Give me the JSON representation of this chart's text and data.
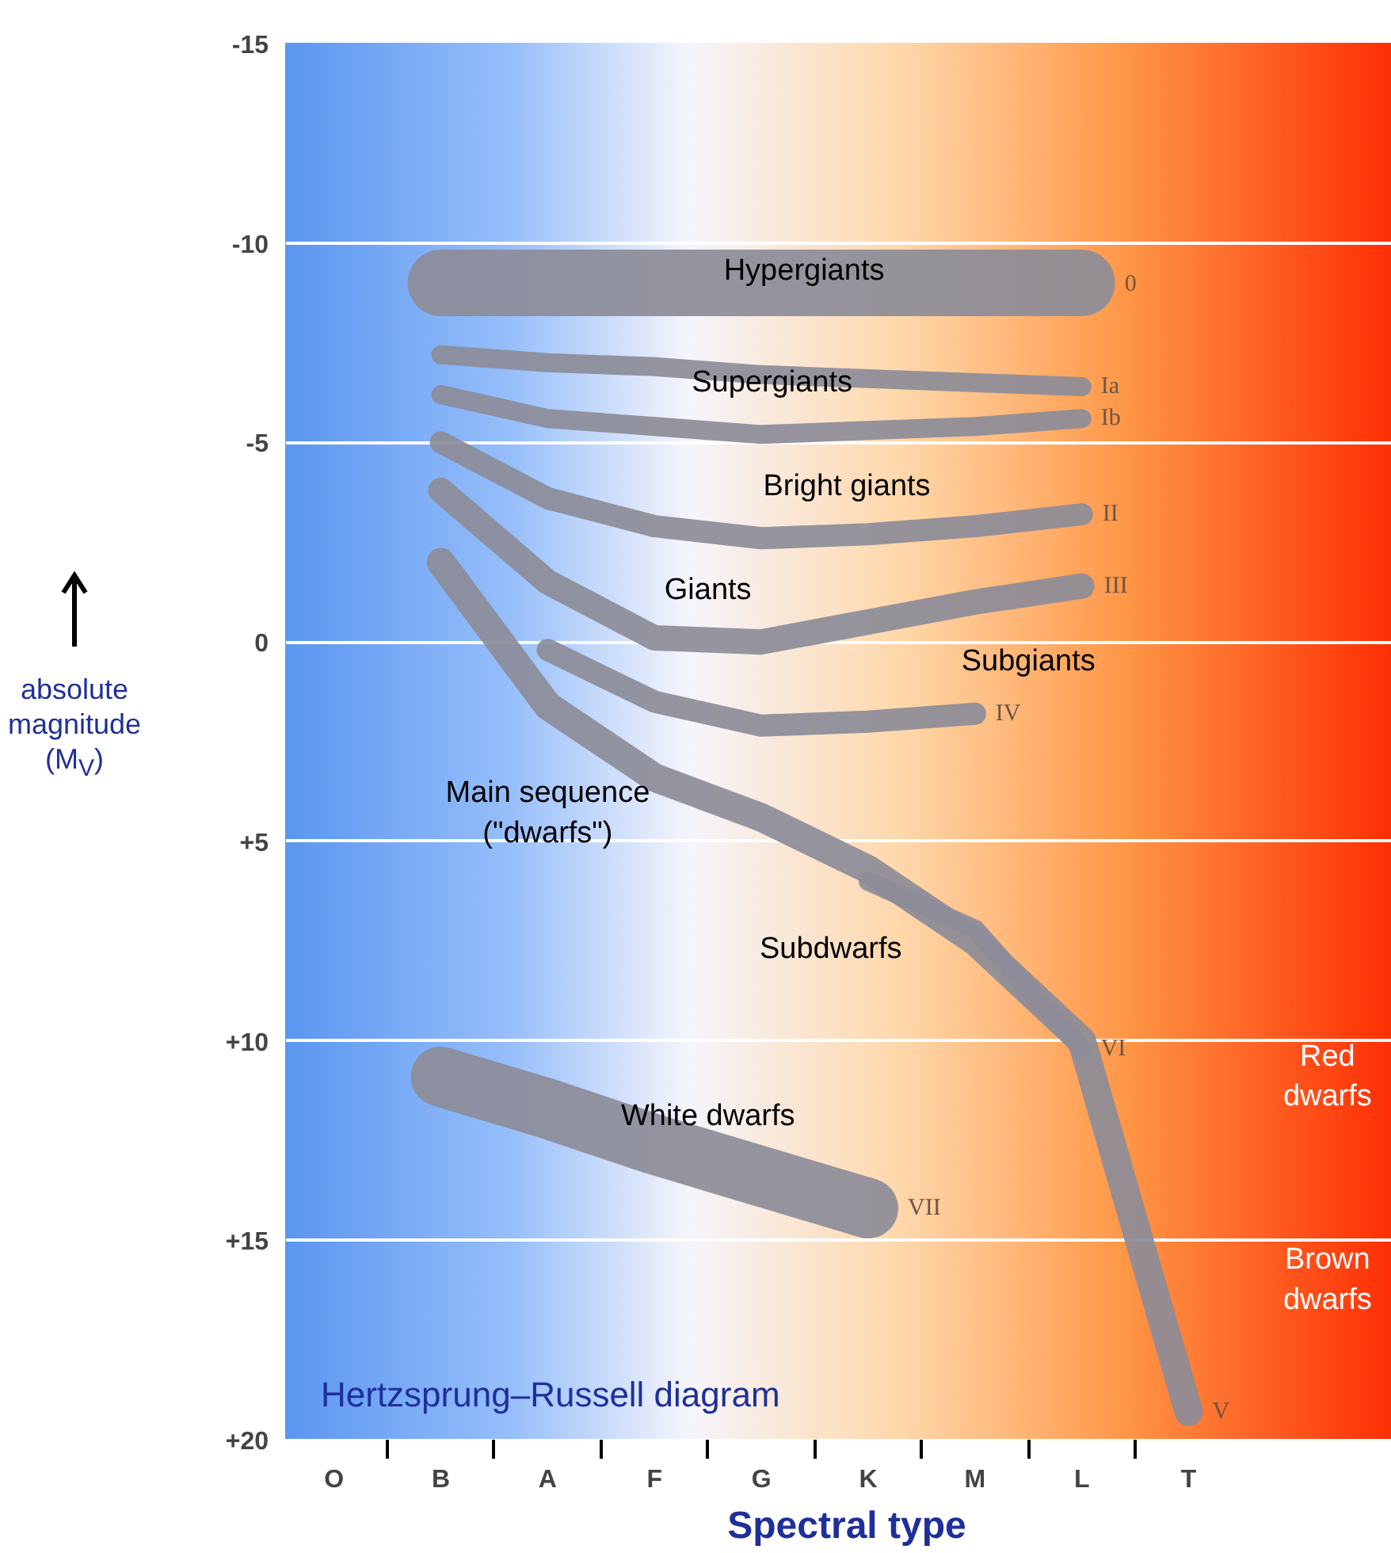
{
  "chart_data": {
    "type": "line",
    "title": "Hertzsprung–Russell diagram",
    "xlabel": "Spectral type",
    "ylabel": "absolute magnitude (M$_{V}$)",
    "categories": [
      "O",
      "B",
      "A",
      "F",
      "G",
      "K",
      "M",
      "L",
      "T"
    ],
    "ylim": [
      20,
      -15
    ],
    "yticks": [
      -15,
      -10,
      -5,
      0,
      {
        "value": 5,
        "label": "+5"
      },
      {
        "value": 10,
        "label": "+10"
      },
      {
        "value": 15,
        "label": "+15"
      },
      {
        "value": 20,
        "label": "+20"
      }
    ],
    "grid": "y",
    "line_style": "solid",
    "series": [
      {
        "name": "0",
        "color": "#8c8c98",
        "values": [
          null,
          -9.0,
          -9.0,
          -9.0,
          -9.0,
          -9.0,
          -9.0,
          -9.0,
          null
        ]
      },
      {
        "name": "Ia",
        "color": "#8c8c98",
        "values": [
          null,
          -7.2,
          -7.0,
          -6.9,
          -6.7,
          -6.6,
          -6.5,
          -6.4,
          null
        ]
      },
      {
        "name": "Ib",
        "color": "#8c8c98",
        "values": [
          null,
          -6.2,
          -5.6,
          -5.4,
          -5.2,
          -5.3,
          -5.4,
          -5.6,
          null
        ]
      },
      {
        "name": "II",
        "color": "#8c8c98",
        "values": [
          null,
          -5.0,
          -3.6,
          -2.9,
          -2.6,
          -2.7,
          -2.9,
          -3.2,
          null
        ]
      },
      {
        "name": "III",
        "color": "#8c8c98",
        "values": [
          null,
          -3.8,
          -1.5,
          -0.1,
          0.0,
          -0.5,
          -1.0,
          -1.4,
          null
        ]
      },
      {
        "name": "IV",
        "color": "#8c8c98",
        "values": [
          null,
          null,
          0.2,
          1.5,
          2.1,
          2.0,
          1.8,
          null,
          null
        ]
      },
      {
        "name": "V",
        "color": "#8c8c98",
        "values": [
          null,
          -2.0,
          1.6,
          3.4,
          4.4,
          5.7,
          7.5,
          10.0,
          19.3
        ]
      },
      {
        "name": "VI",
        "color": "#8c8c98",
        "values": [
          null,
          null,
          null,
          null,
          null,
          6.0,
          7.2,
          10.2,
          null
        ]
      },
      {
        "name": "VII",
        "color": "#8c8c98",
        "values": [
          null,
          10.9,
          11.7,
          12.6,
          13.4,
          14.2,
          null,
          null,
          null
        ]
      }
    ],
    "annotations": [
      "Hypergiants",
      "Supergiants",
      "Bright giants",
      "Giants",
      "Subgiants",
      "Main sequence\n(\"dwarfs\")",
      "Subdwarfs",
      "White dwarfs",
      "Red\ndwarfs",
      "Brown\ndwarfs"
    ]
  }
}
